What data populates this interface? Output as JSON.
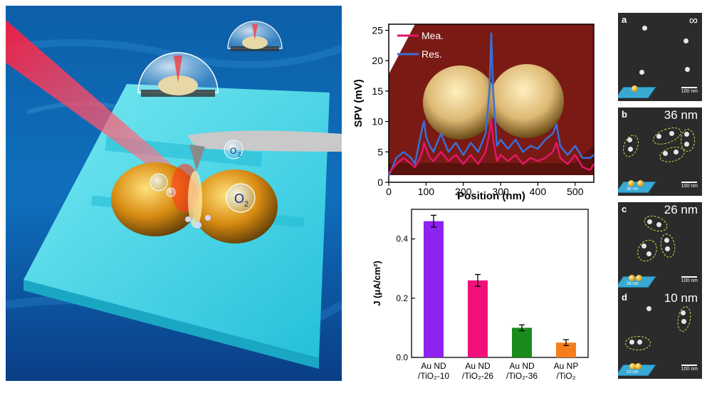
{
  "illustration": {
    "o2_labels": [
      "O",
      "O"
    ],
    "o2_subscript": "2"
  },
  "chart_data": [
    {
      "type": "line",
      "xlabel": "Position (nm)",
      "ylabel": "SPV (mV)",
      "xlim": [
        0,
        550
      ],
      "ylim": [
        0,
        26
      ],
      "xticks": [
        0,
        100,
        200,
        300,
        400,
        500
      ],
      "yticks": [
        0,
        5,
        10,
        15,
        20,
        25
      ],
      "legend_position": "top-left",
      "series": [
        {
          "name": "Mea.",
          "color": "#e0186a",
          "x": [
            0,
            20,
            40,
            60,
            70,
            80,
            90,
            95,
            100,
            110,
            120,
            140,
            160,
            180,
            200,
            220,
            240,
            250,
            260,
            270,
            275,
            280,
            290,
            300,
            320,
            340,
            360,
            380,
            400,
            420,
            440,
            450,
            460,
            480,
            500,
            520,
            540,
            550
          ],
          "y": [
            1.5,
            3,
            4,
            3,
            2.5,
            3.5,
            5,
            6.5,
            5.5,
            4,
            3.5,
            5,
            3.5,
            4.5,
            3,
            4.5,
            3,
            4,
            5,
            8,
            10.5,
            7,
            3.5,
            4.5,
            3.5,
            4.5,
            3,
            4,
            3.5,
            4,
            5,
            6.5,
            4,
            3,
            4.5,
            2.5,
            2,
            3
          ]
        },
        {
          "name": "Res.",
          "color": "#3a6fd8",
          "x": [
            0,
            20,
            40,
            60,
            70,
            80,
            90,
            95,
            100,
            110,
            120,
            140,
            160,
            180,
            200,
            220,
            240,
            250,
            260,
            270,
            275,
            280,
            290,
            300,
            320,
            340,
            360,
            380,
            400,
            420,
            440,
            450,
            460,
            480,
            500,
            520,
            540,
            550
          ],
          "y": [
            1,
            4,
            5,
            4,
            3,
            6,
            9,
            10,
            7.5,
            6,
            5,
            8,
            5,
            6.5,
            4.5,
            6.5,
            5,
            6.5,
            8,
            15,
            24.5,
            15,
            6,
            7,
            5.5,
            7,
            5,
            6,
            5.5,
            7,
            8,
            9.5,
            6,
            4.5,
            6,
            4,
            4,
            4.5
          ]
        }
      ]
    },
    {
      "type": "bar",
      "ylabel": "J (μA/cm²)",
      "ylim": [
        0,
        0.5
      ],
      "yticks": [
        "0.0",
        "0.2",
        "0.4"
      ],
      "categories": [
        [
          "Au ND",
          "/TiO₂-10"
        ],
        [
          "Au ND",
          "/TiO₂-26"
        ],
        [
          "Au ND",
          "/TiO₂-36"
        ],
        [
          "Au NP",
          "/TiO₂"
        ]
      ],
      "values": [
        0.46,
        0.26,
        0.1,
        0.05
      ],
      "errors": [
        0.02,
        0.02,
        0.01,
        0.01
      ],
      "colors": [
        "#8e22f0",
        "#f0127a",
        "#1a8a1a",
        "#f57e1b"
      ]
    }
  ],
  "sem_panels": [
    {
      "label": "a",
      "size": "∞",
      "scale": "100 nm",
      "gap_label": ""
    },
    {
      "label": "b",
      "size": "36 nm",
      "scale": "100 nm",
      "gap_label": "36 nm"
    },
    {
      "label": "c",
      "size": "26 nm",
      "scale": "100 nm",
      "gap_label": "26 nm"
    },
    {
      "label": "d",
      "size": "10 nm",
      "scale": "100 nm",
      "gap_label": "10 nm"
    }
  ]
}
